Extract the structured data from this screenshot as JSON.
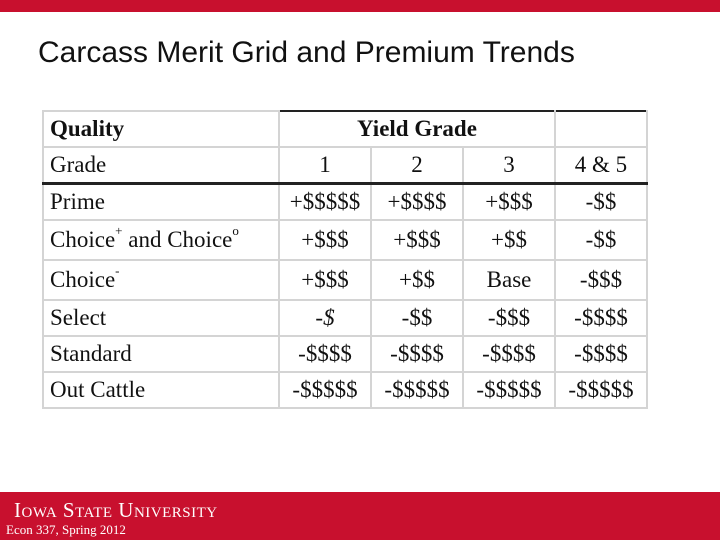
{
  "header": {
    "title": "Carcass Merit Grid and Premium Trends"
  },
  "table": {
    "header1": {
      "label": "Quality",
      "group": "Yield Grade"
    },
    "header2": {
      "label": "Grade",
      "columns": [
        "1",
        "2",
        "3",
        "4 & 5"
      ]
    },
    "rows": [
      {
        "label": [
          {
            "text": "Prime"
          }
        ],
        "cells": [
          "+$$$$$",
          "+$$$$",
          "+$$$",
          "-$$"
        ]
      },
      {
        "label": [
          {
            "text": "Choice",
            "sup": "+"
          },
          {
            "text": " and Choice",
            "sup": "o"
          }
        ],
        "cells": [
          "+$$$",
          "+$$$",
          "+$$",
          "-$$"
        ]
      },
      {
        "label": [
          {
            "text": "Choice",
            "sup": "-"
          }
        ],
        "cells": [
          "+$$$",
          "+$$",
          "Base",
          "-$$$"
        ]
      },
      {
        "label": [
          {
            "text": "Select"
          }
        ],
        "cells": [
          "-$",
          "-$$",
          "-$$$",
          "-$$$$"
        ],
        "italic_first": true
      },
      {
        "label": [
          {
            "text": "Standard"
          }
        ],
        "cells": [
          "-$$$$",
          "-$$$$",
          "-$$$$",
          "-$$$$"
        ]
      },
      {
        "label": [
          {
            "text": "Out Cattle"
          }
        ],
        "cells": [
          "-$$$$$",
          "-$$$$$",
          "-$$$$$",
          "-$$$$$"
        ]
      }
    ]
  },
  "footer": {
    "university": "Iowa State University",
    "course": "Econ 337, Spring 2012"
  }
}
